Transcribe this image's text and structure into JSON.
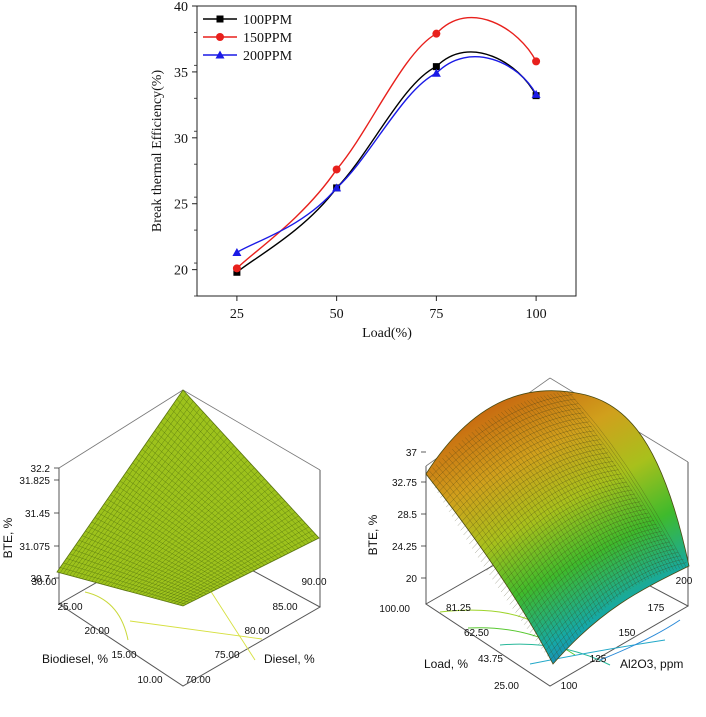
{
  "chart_data": [
    {
      "type": "line",
      "title": "",
      "xlabel": "Load(%)",
      "ylabel": "Break thermal Efficiency(%)",
      "x": [
        25,
        50,
        75,
        100
      ],
      "xticks": [
        "25",
        "50",
        "75",
        "100"
      ],
      "yticks": [
        "20",
        "25",
        "30",
        "35",
        "40"
      ],
      "xlim": [
        15,
        110
      ],
      "ylim": [
        18,
        40
      ],
      "legend_position": "top-left",
      "series": [
        {
          "name": "100PPM",
          "values": [
            19.8,
            26.2,
            35.4,
            33.2
          ],
          "color": "#000000",
          "marker": "square"
        },
        {
          "name": "150PPM",
          "values": [
            20.1,
            27.6,
            37.9,
            35.8
          ],
          "color": "#e8201c",
          "marker": "circle"
        },
        {
          "name": "200PPM",
          "values": [
            21.3,
            26.2,
            34.9,
            33.3
          ],
          "color": "#1a1ae6",
          "marker": "triangle"
        }
      ]
    },
    {
      "type": "surface",
      "title": "",
      "zlabel": "BTE, %",
      "xlabel": "Diesel, %",
      "ylabel": "Biodiesel, %",
      "zticks": [
        "30.7",
        "31.075",
        "31.45",
        "31.825",
        "32.2"
      ],
      "xticks": [
        "70.00",
        "75.00",
        "80.00",
        "85.00",
        "90.00"
      ],
      "yticks": [
        "10.00",
        "15.00",
        "20.00",
        "25.00",
        "30.00"
      ],
      "zlim": [
        30.7,
        32.2
      ],
      "surface_color": "#9dc21c"
    },
    {
      "type": "surface",
      "title": "",
      "zlabel": "BTE, %",
      "xlabel": "Al2O3, ppm",
      "ylabel": "Load, %",
      "zticks": [
        "20",
        "24.25",
        "28.5",
        "32.75",
        "37"
      ],
      "xticks": [
        "100",
        "125",
        "150",
        "175",
        "200"
      ],
      "yticks": [
        "25.00",
        "43.75",
        "62.50",
        "81.25",
        "100.00"
      ],
      "zlim": [
        20,
        37
      ],
      "colormap": [
        "#1e6fd0",
        "#16b2a6",
        "#3ec22a",
        "#a8c61a",
        "#e08a14"
      ]
    }
  ]
}
